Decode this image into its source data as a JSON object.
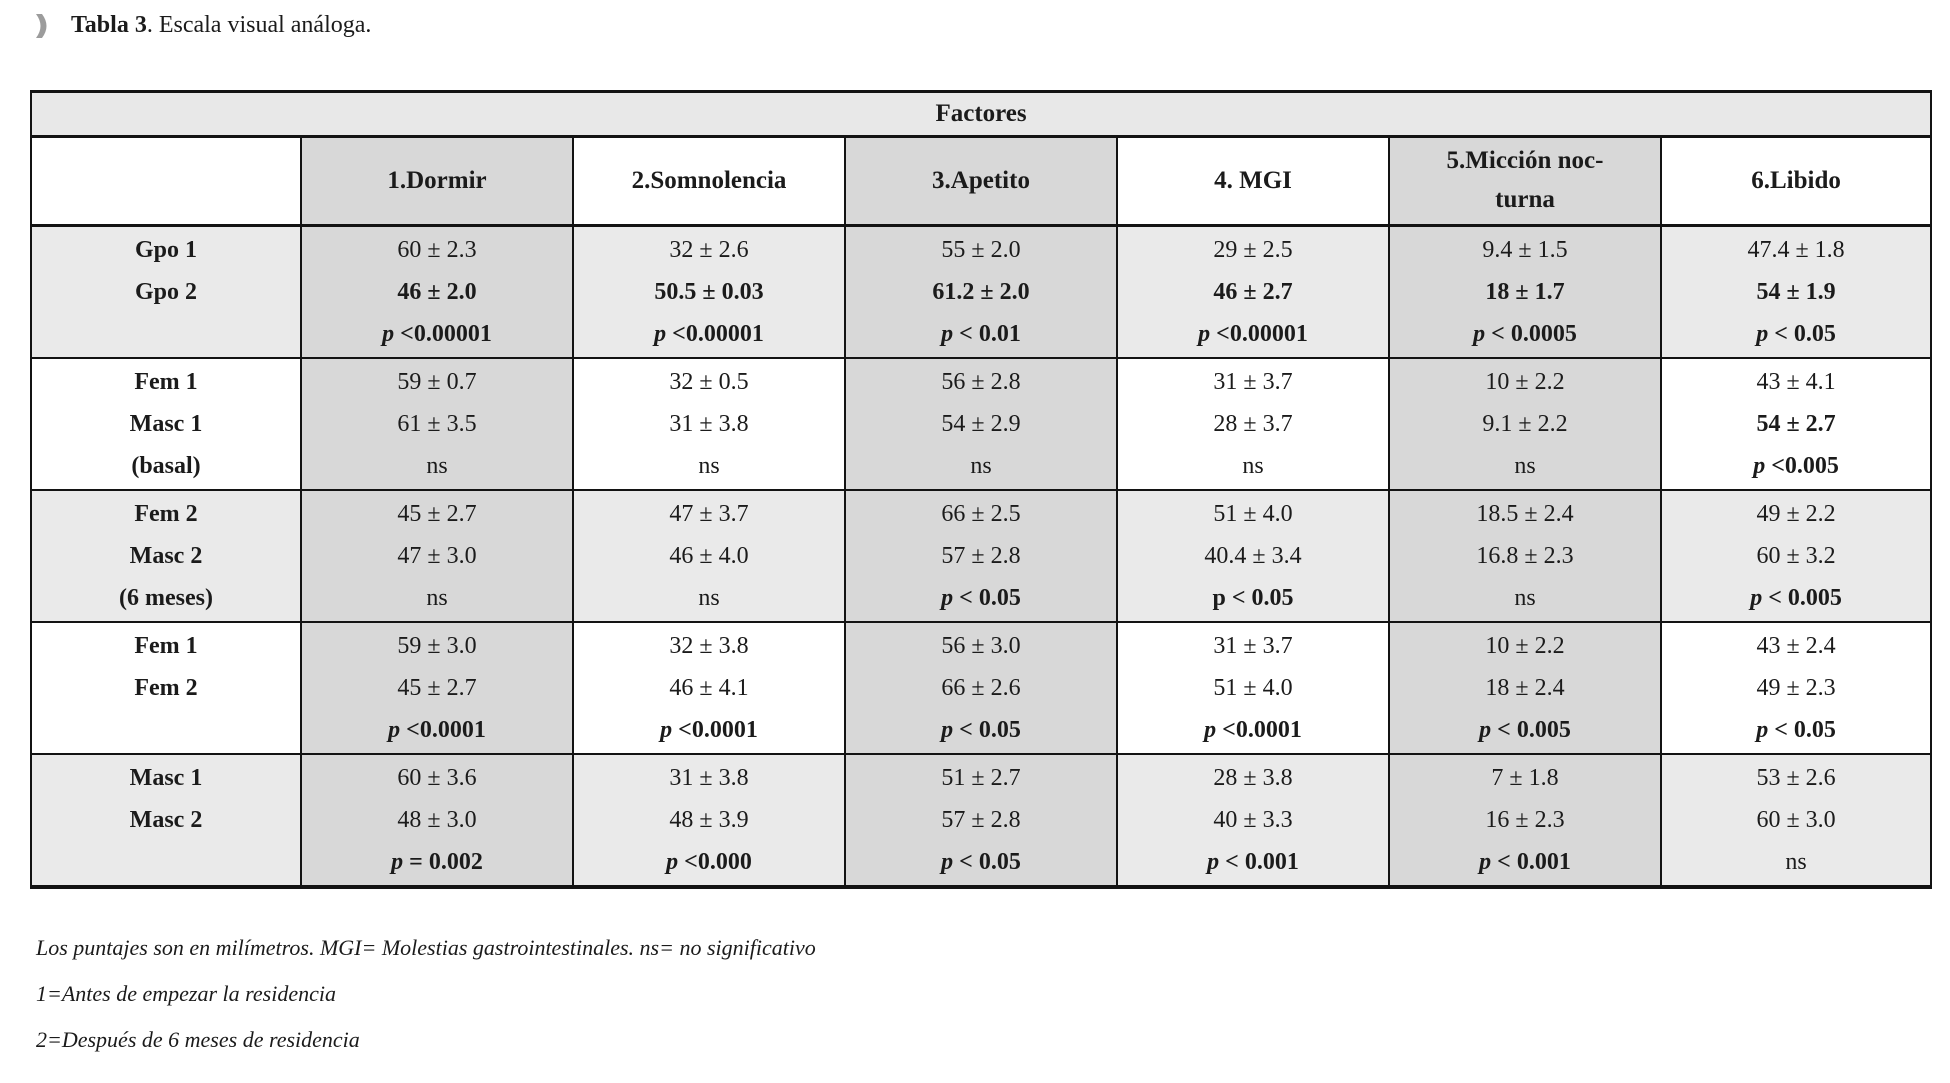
{
  "title": {
    "bold": "Tabla 3",
    "rest": ". Escala visual análoga.",
    "bullet_icon": "chevron-right-bullet",
    "bullet_color": "#9c9c9c"
  },
  "table": {
    "group_header": "Factores",
    "columns": [
      "",
      "1.Dormir",
      "2.Somnolencia",
      "3.Apetito",
      "4. MGI",
      "5.Micción noc-\nturna",
      "6.Libido"
    ],
    "rows": [
      {
        "labels": [
          "Gpo 1",
          "Gpo 2",
          ""
        ],
        "band": "gray",
        "cells": [
          [
            [
              "60 ± 2.3",
              "n"
            ],
            [
              "46 ± 2.0",
              "b"
            ],
            [
              "p <0.00001",
              "p"
            ]
          ],
          [
            [
              "32 ± 2.6",
              "n"
            ],
            [
              "50.5 ± 0.03",
              "b"
            ],
            [
              "p <0.00001",
              "p"
            ]
          ],
          [
            [
              "55 ± 2.0",
              "n"
            ],
            [
              "61.2 ± 2.0",
              "b"
            ],
            [
              "p < 0.01",
              "p"
            ]
          ],
          [
            [
              "29 ± 2.5",
              "n"
            ],
            [
              "46 ± 2.7",
              "b"
            ],
            [
              "p <0.00001",
              "p"
            ]
          ],
          [
            [
              "9.4 ± 1.5",
              "n"
            ],
            [
              "18 ± 1.7",
              "b"
            ],
            [
              "p < 0.0005",
              "p"
            ]
          ],
          [
            [
              "47.4 ± 1.8",
              "n"
            ],
            [
              "54 ± 1.9",
              "b"
            ],
            [
              "p < 0.05",
              "p"
            ]
          ]
        ]
      },
      {
        "labels": [
          "Fem 1",
          "Masc 1",
          "(basal)"
        ],
        "band": "white",
        "cells": [
          [
            [
              "59 ± 0.7",
              "n"
            ],
            [
              "61 ± 3.5",
              "n"
            ],
            [
              "ns",
              "n"
            ]
          ],
          [
            [
              "32 ± 0.5",
              "n"
            ],
            [
              "31 ± 3.8",
              "n"
            ],
            [
              "ns",
              "n"
            ]
          ],
          [
            [
              "56 ± 2.8",
              "n"
            ],
            [
              "54 ± 2.9",
              "n"
            ],
            [
              "ns",
              "n"
            ]
          ],
          [
            [
              "31 ± 3.7",
              "n"
            ],
            [
              "28 ± 3.7",
              "n"
            ],
            [
              "ns",
              "n"
            ]
          ],
          [
            [
              "10 ± 2.2",
              "n"
            ],
            [
              "9.1 ± 2.2",
              "n"
            ],
            [
              "ns",
              "n"
            ]
          ],
          [
            [
              "43 ± 4.1",
              "n"
            ],
            [
              "54 ± 2.7",
              "b"
            ],
            [
              "p <0.005",
              "p"
            ]
          ]
        ]
      },
      {
        "labels": [
          "Fem 2",
          "Masc 2",
          "(6 meses)"
        ],
        "band": "gray",
        "cells": [
          [
            [
              "45 ± 2.7",
              "n"
            ],
            [
              "47 ± 3.0",
              "n"
            ],
            [
              "ns",
              "n"
            ]
          ],
          [
            [
              "47 ± 3.7",
              "n"
            ],
            [
              "46 ± 4.0",
              "n"
            ],
            [
              "ns",
              "n"
            ]
          ],
          [
            [
              "66 ± 2.5",
              "n"
            ],
            [
              "57 ± 2.8",
              "n"
            ],
            [
              "p < 0.05",
              "p"
            ]
          ],
          [
            [
              "51 ± 4.0",
              "n"
            ],
            [
              "40.4 ± 3.4",
              "n"
            ],
            [
              "p < 0.05",
              "P"
            ]
          ],
          [
            [
              "18.5 ± 2.4",
              "n"
            ],
            [
              "16.8 ± 2.3",
              "n"
            ],
            [
              "ns",
              "n"
            ]
          ],
          [
            [
              "49 ± 2.2",
              "n"
            ],
            [
              "60 ± 3.2",
              "n"
            ],
            [
              "p < 0.005",
              "p"
            ]
          ]
        ]
      },
      {
        "labels": [
          "Fem 1",
          "Fem 2",
          ""
        ],
        "band": "white",
        "cells": [
          [
            [
              "59 ± 3.0",
              "n"
            ],
            [
              "45 ± 2.7",
              "n"
            ],
            [
              "p <0.0001",
              "p"
            ]
          ],
          [
            [
              "32 ± 3.8",
              "n"
            ],
            [
              "46 ± 4.1",
              "n"
            ],
            [
              "p <0.0001",
              "p"
            ]
          ],
          [
            [
              "56 ± 3.0",
              "n"
            ],
            [
              "66 ± 2.6",
              "n"
            ],
            [
              "p < 0.05",
              "p"
            ]
          ],
          [
            [
              "31 ± 3.7",
              "n"
            ],
            [
              "51 ± 4.0",
              "n"
            ],
            [
              "p <0.0001",
              "p"
            ]
          ],
          [
            [
              "10 ± 2.2",
              "n"
            ],
            [
              "18 ± 2.4",
              "n"
            ],
            [
              "p < 0.005",
              "p"
            ]
          ],
          [
            [
              "43 ± 2.4",
              "n"
            ],
            [
              "49 ± 2.3",
              "n"
            ],
            [
              "p < 0.05",
              "p"
            ]
          ]
        ]
      },
      {
        "labels": [
          "Masc 1",
          "Masc 2",
          ""
        ],
        "band": "gray",
        "cells": [
          [
            [
              "60 ± 3.6",
              "n"
            ],
            [
              "48 ± 3.0",
              "n"
            ],
            [
              "p = 0.002",
              "p"
            ]
          ],
          [
            [
              "31 ± 3.8",
              "n"
            ],
            [
              "48 ± 3.9",
              "n"
            ],
            [
              "p <0.000",
              "p"
            ]
          ],
          [
            [
              "51 ± 2.7",
              "n"
            ],
            [
              "57 ± 2.8",
              "n"
            ],
            [
              "p < 0.05",
              "p"
            ]
          ],
          [
            [
              "28 ± 3.8",
              "n"
            ],
            [
              "40 ± 3.3",
              "n"
            ],
            [
              "p < 0.001",
              "p"
            ]
          ],
          [
            [
              "7 ± 1.8",
              "n"
            ],
            [
              "16 ± 2.3",
              "n"
            ],
            [
              "p < 0.001",
              "p"
            ]
          ],
          [
            [
              "53 ± 2.6",
              "n"
            ],
            [
              "60 ± 3.0",
              "n"
            ],
            [
              "ns",
              "n"
            ]
          ]
        ]
      }
    ]
  },
  "footnotes": [
    "Los puntajes son en milímetros. MGI= Molestias gastrointestinales. ns= no significativo",
    "1=Antes de empezar la residencia",
    "2=Después de 6 meses de residencia"
  ],
  "colors": {
    "header_band_bg": "#e8e8e8",
    "column_shade": "#d8d8d8",
    "row_band_shade": "#eaeaea",
    "border": "#131313"
  }
}
